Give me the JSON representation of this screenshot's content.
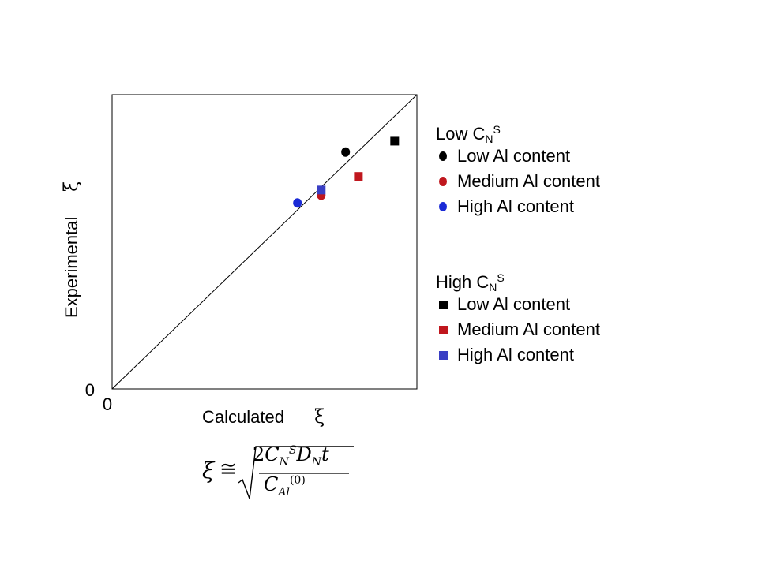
{
  "chart_data": {
    "type": "scatter",
    "xlabel_text": "Calculated",
    "xlabel_symbol": "ξ",
    "ylabel_text": "Experimental",
    "ylabel_symbol": "ξ",
    "x_tick_label": "0",
    "y_tick_label": "0",
    "xlim": [
      0,
      1
    ],
    "ylim": [
      0,
      1
    ],
    "grid": false,
    "reference_line": "y = x",
    "legend_position": "right",
    "series": [
      {
        "name": "Low Al content",
        "group": "Low C_N^S",
        "marker": "circle",
        "color": "#000000",
        "points": [
          [
            0.766,
            0.805
          ]
        ]
      },
      {
        "name": "Medium Al content",
        "group": "Low C_N^S",
        "marker": "circle",
        "color": "#c0171e",
        "points": [
          [
            0.686,
            0.658
          ]
        ]
      },
      {
        "name": "High Al content",
        "group": "Low C_N^S",
        "marker": "circle",
        "color": "#1a2ad6",
        "points": [
          [
            0.608,
            0.632
          ]
        ]
      },
      {
        "name": "Low Al content",
        "group": "High C_N^S",
        "marker": "square",
        "color": "#000000",
        "points": [
          [
            0.927,
            0.842
          ]
        ]
      },
      {
        "name": "Medium Al content",
        "group": "High C_N^S",
        "marker": "square",
        "color": "#c0171e",
        "points": [
          [
            0.808,
            0.722
          ]
        ]
      },
      {
        "name": "High Al content",
        "group": "High C_N^S",
        "marker": "square",
        "color": "#3a3fc4",
        "points": [
          [
            0.686,
            0.676
          ]
        ]
      }
    ]
  },
  "legend": {
    "group1": {
      "title_main": "Low C",
      "title_sub": "N",
      "title_sup": "S",
      "items": [
        {
          "label": "Low Al content",
          "marker": "circle",
          "color": "#000000"
        },
        {
          "label": "Medium Al content",
          "marker": "circle",
          "color": "#c0171e"
        },
        {
          "label": "High Al content",
          "marker": "circle",
          "color": "#1a2ad6"
        }
      ]
    },
    "group2": {
      "title_main": "High C",
      "title_sub": "N",
      "title_sup": "S",
      "items": [
        {
          "label": "Low Al content",
          "marker": "square",
          "color": "#000000"
        },
        {
          "label": "Medium Al content",
          "marker": "square",
          "color": "#c0171e"
        },
        {
          "label": "High Al content",
          "marker": "square",
          "color": "#3a3fc4"
        }
      ]
    }
  },
  "formula": {
    "lhs": "ξ",
    "approx": "≅",
    "numerator": {
      "coef": "2",
      "c": "C",
      "c_sub": "N",
      "c_sup": "S",
      "d": "D",
      "d_sub": "N",
      "t": "t"
    },
    "denominator": {
      "c": "C",
      "c_sub": "Al",
      "c_sup": "(0)"
    }
  }
}
